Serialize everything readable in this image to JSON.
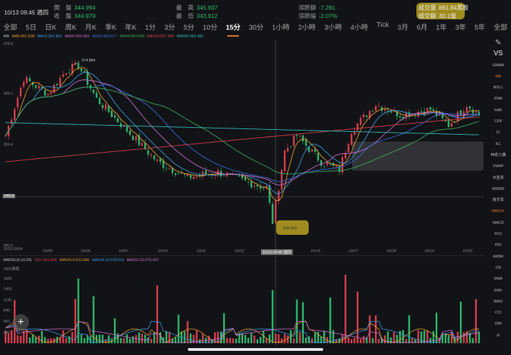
{
  "header": {
    "datetime": "10/13 09:45 週四",
    "open_label": "開　盤",
    "open": "344.994",
    "close_label": "收　盤",
    "close": "344.979",
    "high_label": "最　高",
    "high": "345.937",
    "low_label": "最　低",
    "low": "343.912",
    "chg_label": "漲跌額",
    "chg": "-7.281",
    "pct_label": "漲跌幅",
    "pct": "-2.07%",
    "vol_label": "成交量",
    "vol": "861.84萬股",
    "amt_label": "成交額",
    "amt": "30.1億"
  },
  "tabs": [
    "全部",
    "5日",
    "日K",
    "周K",
    "月K",
    "季K",
    "年K",
    "1分",
    "3分",
    "5分",
    "10分",
    "15分",
    "30分",
    "1小時",
    "2小時",
    "3小時",
    "4小時",
    "Tick",
    "3月",
    "6月",
    "1年",
    "3年",
    "5年",
    "全部"
  ],
  "active_tab": "15分",
  "ma_legend": {
    "title": "MA",
    "items": [
      {
        "label": "MA5:351.538",
        "color": "#f0a030"
      },
      {
        "label": "MA10:352.801",
        "color": "#3aa0e8"
      },
      {
        "label": "MA20:353.465",
        "color": "#d070d8"
      },
      {
        "label": "MA30:353.577",
        "color": "#3a70e8"
      },
      {
        "label": "MA60:354.593",
        "color": "#3ab060"
      },
      {
        "label": "MA120:357.930",
        "color": "#e04050"
      },
      {
        "label": "MA250:361.481",
        "color": "#30c0c0"
      }
    ]
  },
  "price_axis": {
    "top": "378.8",
    "mid1": "369.1",
    "mid2": "359.4",
    "cross": "349.8",
    "bottom": "340.0"
  },
  "annotations": {
    "high": "374.884",
    "low": "343.912"
  },
  "date_axis": [
    "2022/10/04",
    "10/05",
    "10/06",
    "10/07",
    "10/10",
    "10/11",
    "10/12",
    "10/13 09:45 週四",
    "10/14",
    "10/17",
    "10/18",
    "10/19",
    "10/20"
  ],
  "vol_legend": {
    "title": "MAVOL(5,10,20)",
    "items": [
      {
        "label": "VOL:861.836",
        "color": "#e04050"
      },
      {
        "label": "MAVOL5:511.690",
        "color": "#f0a030"
      },
      {
        "label": "MAVOL10:378.013",
        "color": "#3aa0e8"
      },
      {
        "label": "MAVOL20:270.067",
        "color": "#d070d8"
      }
    ]
  },
  "vol_axis": [
    "1960萬股",
    "1680",
    "1400",
    "1120",
    "840",
    "560",
    "280"
  ],
  "sidebar": [
    "VS",
    "GMMA",
    "MA",
    "BOLL",
    "EMA",
    "SAR",
    "CDP",
    "IC",
    "KC",
    "神奇九轉",
    "VWAP",
    "市盈率",
    "WMSR",
    "換手率",
    "MAVOL",
    "MACD",
    "KDJ",
    "RSI",
    "ARBR",
    "CR",
    "DMA",
    "EMV",
    "BIAS",
    "CCI",
    "DMI"
  ],
  "sidebar_active": [
    "MA",
    "MAVOL"
  ],
  "chart_data": {
    "type": "candlestick",
    "ylim": [
      340.0,
      378.8
    ],
    "keypoints": [
      [
        0,
        361
      ],
      [
        6,
        372
      ],
      [
        14,
        369
      ],
      [
        20,
        373.5
      ],
      [
        24,
        374.5
      ],
      [
        30,
        368
      ],
      [
        40,
        362
      ],
      [
        50,
        356
      ],
      [
        60,
        353
      ],
      [
        70,
        354
      ],
      [
        80,
        352
      ],
      [
        86,
        351
      ],
      [
        88,
        344.5
      ],
      [
        92,
        358
      ],
      [
        96,
        361
      ],
      [
        104,
        356
      ],
      [
        110,
        354.5
      ],
      [
        114,
        362
      ],
      [
        122,
        367
      ],
      [
        130,
        365
      ],
      [
        140,
        366
      ],
      [
        146,
        363
      ],
      [
        152,
        367
      ],
      [
        156,
        365
      ]
    ]
  }
}
